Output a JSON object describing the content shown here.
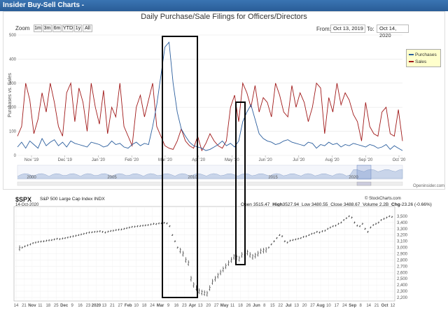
{
  "header": {
    "title": "Insider Buy-Sell Charts -"
  },
  "top_chart": {
    "title": "Daily Purchase/Sale Filings for Officers/Directors",
    "zoom_label": "Zoom",
    "zoom_buttons": [
      "1m",
      "3m",
      "6m",
      "YTD",
      "1y",
      "All"
    ],
    "from_label": "From:",
    "from_value": "Oct 13, 2019",
    "to_label": "To:",
    "to_value": "Oct 14, 2020",
    "credit": "Openinsider.com",
    "nav_years": [
      "2000",
      "2005",
      "2010",
      "2015",
      "2020"
    ]
  },
  "bottom_chart": {
    "ticker": "$SPX",
    "name": "S&P 500 Large Cap Index  INDX",
    "date": "14-Oct-2020",
    "credit": "© StockCharts.com",
    "open_label": "Open",
    "open": "3515.47",
    "high_label": "High",
    "high": "3527.94",
    "low_label": "Low",
    "low": "3480.55",
    "close_label": "Close",
    "close": "3488.67",
    "volume_label": "Volume",
    "volume": "2.2B",
    "chg_label": "Chg",
    "chg": "-23.26 (-0.66%)"
  },
  "colors": {
    "purchases": "#2c5f9e",
    "sales": "#a01818",
    "ohlc": "#111111",
    "annotation": "#000000",
    "header_bg": "#2f66a3"
  },
  "chart_data": [
    {
      "type": "line",
      "title": "Daily Purchase/Sale Filings for Officers/Directors",
      "ylabel": "Purchases vs. Sales",
      "ylim": [
        0,
        500
      ],
      "y_ticks": [
        0,
        100,
        200,
        300,
        400,
        500
      ],
      "x_ticks": [
        "Nov '19",
        "Dec '19",
        "Jan '20",
        "Feb '20",
        "Mar '20",
        "Apr '20",
        "May '20",
        "Jun '20",
        "Jul '20",
        "Aug '20",
        "Sep '20",
        "Oct '20"
      ],
      "series": [
        {
          "name": "Purchases",
          "values": [
            35,
            55,
            30,
            60,
            45,
            30,
            70,
            40,
            55,
            65,
            40,
            55,
            35,
            60,
            50,
            45,
            40,
            35,
            55,
            50,
            45,
            35,
            40,
            60,
            45,
            50,
            35,
            30,
            45,
            55,
            40,
            50,
            45,
            120,
            210,
            330,
            450,
            470,
            300,
            180,
            110,
            80,
            55,
            40,
            35,
            30,
            20,
            25,
            35,
            45,
            60,
            40,
            50,
            35,
            60,
            140,
            180,
            210,
            150,
            90,
            70,
            60,
            55,
            45,
            50,
            60,
            65,
            55,
            50,
            45,
            40,
            55,
            50,
            30,
            45,
            40,
            55,
            45,
            50,
            35,
            45,
            40,
            50,
            45,
            40,
            35,
            45,
            40,
            30,
            35,
            45,
            25,
            40,
            30,
            20
          ]
        },
        {
          "name": "Sales",
          "values": [
            80,
            120,
            300,
            230,
            90,
            150,
            260,
            180,
            300,
            220,
            120,
            80,
            260,
            300,
            140,
            280,
            220,
            100,
            300,
            200,
            130,
            270,
            90,
            200,
            160,
            300,
            120,
            80,
            40,
            200,
            250,
            160,
            230,
            300,
            120,
            80,
            40,
            30,
            25,
            60,
            110,
            60,
            40,
            30,
            80,
            20,
            50,
            90,
            60,
            40,
            30,
            60,
            200,
            250,
            140,
            300,
            260,
            200,
            290,
            180,
            240,
            220,
            160,
            300,
            250,
            180,
            160,
            290,
            200,
            260,
            220,
            140,
            200,
            300,
            280,
            90,
            240,
            180,
            300,
            210,
            260,
            230,
            170,
            140,
            60,
            220,
            120,
            90,
            80,
            180,
            200,
            90,
            80,
            190,
            60
          ]
        }
      ]
    },
    {
      "type": "line",
      "title": "$SPX S&P 500 Large Cap Index INDX",
      "ylim": [
        2200,
        3600
      ],
      "y_ticks": [
        2200,
        2300,
        2400,
        2500,
        2600,
        2700,
        2800,
        2900,
        3000,
        3100,
        3200,
        3300,
        3400,
        3500
      ],
      "x_ticks": [
        "14",
        "21",
        "Nov",
        "11",
        "18",
        "25",
        "Dec",
        "9",
        "16",
        "23",
        "2020",
        "13",
        "21",
        "27",
        "Feb",
        "10",
        "18",
        "24",
        "Mar",
        "9",
        "16",
        "23",
        "Apr",
        "13",
        "20",
        "27",
        "May",
        "11",
        "18",
        "26",
        "Jun",
        "8",
        "15",
        "22",
        "Jul",
        "13",
        "20",
        "27",
        "Aug",
        "10",
        "17",
        "24",
        "Sep",
        "8",
        "14",
        "21",
        "Oct",
        "12"
      ],
      "series": [
        {
          "name": "$SPX",
          "values": [
            2990,
            3000,
            3020,
            3035,
            3050,
            3070,
            3080,
            3090,
            3095,
            3100,
            3110,
            3115,
            3120,
            3130,
            3140,
            3135,
            3145,
            3150,
            3160,
            3170,
            3180,
            3190,
            3200,
            3210,
            3220,
            3230,
            3240,
            3245,
            3250,
            3255,
            3260,
            3250,
            3240,
            3255,
            3265,
            3270,
            3280,
            3285,
            3290,
            3300,
            3310,
            3320,
            3330,
            3335,
            3340,
            3345,
            3350,
            3355,
            3360,
            3370,
            3380,
            3375,
            3385,
            3390,
            3395,
            3385,
            3340,
            3200,
            3100,
            3000,
            2950,
            2900,
            2800,
            2750,
            2500,
            2400,
            2350,
            2300,
            2280,
            2270,
            2260,
            2350,
            2450,
            2500,
            2550,
            2600,
            2650,
            2700,
            2750,
            2800,
            2850,
            2840,
            2820,
            2880,
            2900,
            2920,
            2880,
            2850,
            2870,
            2900,
            2940,
            2950,
            2960,
            3000,
            3050,
            3100,
            3150,
            3200,
            3180,
            3100,
            3080,
            3110,
            3120,
            3130,
            3140,
            3150,
            3170,
            3180,
            3200,
            3220,
            3230,
            3250,
            3240,
            3260,
            3270,
            3300,
            3320,
            3340,
            3350,
            3380,
            3400,
            3440,
            3470,
            3500,
            3480,
            3400,
            3350,
            3340,
            3380,
            3300,
            3250,
            3320,
            3360,
            3380,
            3400,
            3440,
            3460,
            3480,
            3500,
            3490
          ]
        }
      ]
    }
  ]
}
